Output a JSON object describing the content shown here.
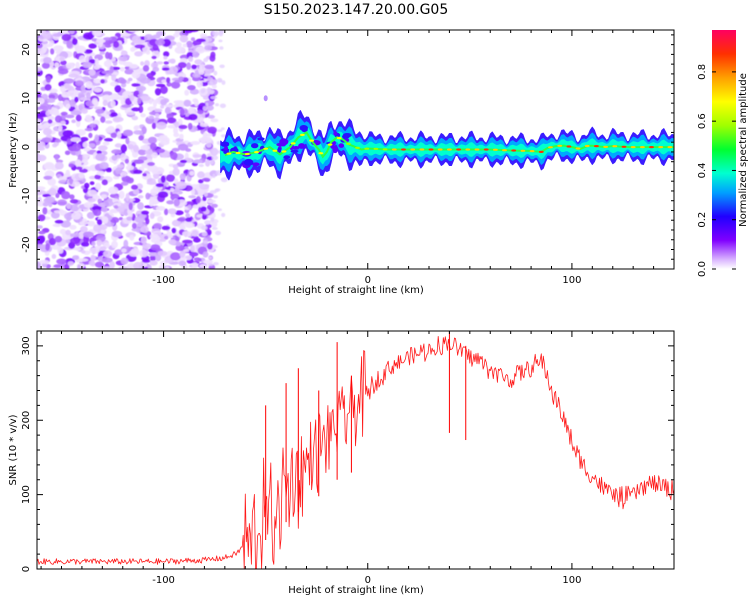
{
  "title": "S150.2023.147.20.00.G05",
  "chart_data": [
    {
      "type": "heatmap",
      "xlabel": "Height of straight line (km)",
      "ylabel": "Frequency (Hz)",
      "xlim": [
        -162,
        150
      ],
      "ylim": [
        -25,
        24
      ],
      "x_ticks": [
        -100,
        0,
        100
      ],
      "y_ticks": [
        -20,
        -10,
        0,
        10,
        20
      ],
      "grid": false,
      "colorbar": {
        "label": "Normalized spectral amplitude",
        "ticks": [
          0.0,
          0.2,
          0.4,
          0.6,
          0.8
        ],
        "range": [
          0,
          0.97
        ],
        "colormap": [
          "#ffffff",
          "#d9b3ff",
          "#8000ff",
          "#2000ff",
          "#00a0ff",
          "#00ffd0",
          "#00ff30",
          "#a0ff00",
          "#ffff00",
          "#ffa000",
          "#ff3000",
          "#ff0060"
        ]
      },
      "ridge": {
        "x": [
          -72,
          -66,
          -60,
          -54,
          -48,
          -43,
          -38,
          -34,
          -30,
          -27,
          -24,
          -22,
          -20,
          -18,
          -15,
          -12,
          -9,
          -6,
          -3,
          0,
          10,
          20,
          30,
          40,
          50,
          60,
          70,
          80,
          85,
          88,
          92,
          96,
          100,
          104,
          108,
          112,
          116,
          120,
          124,
          128,
          132,
          136,
          140,
          146,
          150
        ],
        "y": [
          -2,
          -1,
          -1.5,
          -1,
          0,
          -1.5,
          0,
          2,
          3,
          1,
          -0.5,
          -2,
          -1,
          1,
          2,
          1.5,
          0.5,
          0,
          -0.5,
          -0.3,
          -0.5,
          -0.5,
          -0.5,
          -0.5,
          -0.5,
          -0.5,
          -0.7,
          -0.8,
          -1,
          -0.2,
          0.2,
          0.3,
          0,
          -0.4,
          0.3,
          0.2,
          0,
          0.2,
          0.1,
          0,
          0,
          0,
          0,
          0,
          0
        ]
      }
    },
    {
      "type": "line",
      "xlabel": "Height of straight line (km)",
      "ylabel": "SNR (10 * v/v)",
      "xlim": [
        -162,
        150
      ],
      "ylim": [
        0,
        320
      ],
      "x_ticks": [
        -100,
        0,
        100
      ],
      "y_ticks": [
        0,
        100,
        200,
        300
      ],
      "grid": false,
      "series": [
        {
          "color": "#ff0000",
          "x": [
            -162,
            -140,
            -120,
            -100,
            -80,
            -70,
            -65,
            -60,
            -55,
            -50,
            -45,
            -40,
            -35,
            -30,
            -25,
            -20,
            -15,
            -10,
            -5,
            0,
            5,
            10,
            15,
            20,
            25,
            30,
            35,
            40,
            45,
            50,
            55,
            60,
            65,
            70,
            75,
            80,
            85,
            88,
            90,
            95,
            100,
            105,
            110,
            115,
            120,
            125,
            130,
            135,
            140,
            145,
            150
          ],
          "y": [
            10,
            10,
            10,
            10,
            12,
            15,
            20,
            30,
            45,
            65,
            85,
            105,
            125,
            140,
            160,
            175,
            200,
            210,
            225,
            240,
            255,
            270,
            278,
            285,
            290,
            295,
            300,
            305,
            295,
            285,
            280,
            268,
            260,
            255,
            265,
            270,
            280,
            260,
            240,
            210,
            170,
            140,
            125,
            110,
            100,
            95,
            100,
            110,
            115,
            110,
            105
          ]
        }
      ]
    }
  ]
}
